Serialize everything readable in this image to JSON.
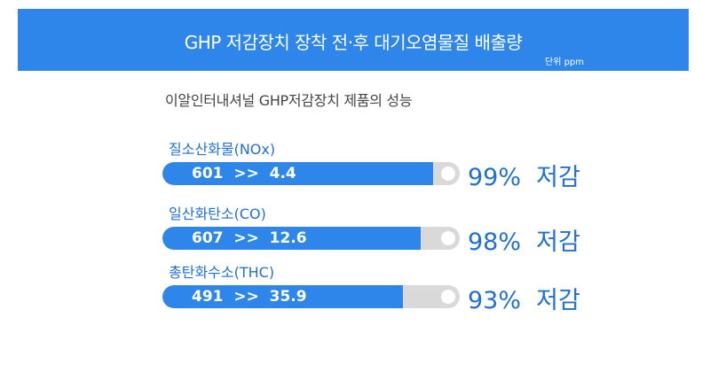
{
  "header": {
    "title": "GHP 저감장치 장착 전·후 대기오염물질 배출량",
    "unit": "단위 ppm"
  },
  "subtitle": "이알인터내셔널  GHP저감장치 제품의 성능",
  "colors": {
    "accent": "#2e86ea",
    "label": "#1f6fd6",
    "track": "#d9d9d9"
  },
  "chart_data": {
    "type": "bar",
    "title": "GHP 저감장치 장착 전·후 대기오염물질 배출량",
    "unit": "단위 ppm",
    "categories": [
      "질소산화물(NOx)",
      "일산화탄소(CO)",
      "총탄화수소(THC)"
    ],
    "series": [
      {
        "name": "before",
        "values": [
          601,
          607,
          491
        ]
      },
      {
        "name": "after",
        "values": [
          4.4,
          12.6,
          35.9
        ]
      }
    ],
    "reduction_percent": [
      99,
      98,
      93
    ],
    "rows": [
      {
        "label": "질소산화물(NOx)",
        "bar_text": "601  >>  4.4",
        "reduction": "99%  저감",
        "fill": 0.91
      },
      {
        "label": "일산화탄소(CO)",
        "bar_text": "607  >>  12.6",
        "reduction": "98%  저감",
        "fill": 0.87
      },
      {
        "label": "총탄화수소(THC)",
        "bar_text": "491  >>  35.9",
        "reduction": "93%  저감",
        "fill": 0.81
      }
    ]
  }
}
